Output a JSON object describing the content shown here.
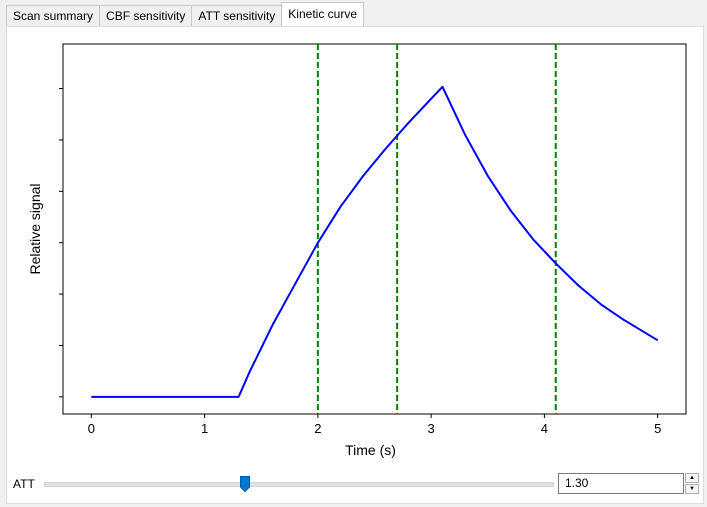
{
  "tabs": [
    {
      "label": "Scan summary",
      "active": false
    },
    {
      "label": "CBF sensitivity",
      "active": false
    },
    {
      "label": "ATT sensitivity",
      "active": false
    },
    {
      "label": "Kinetic curve",
      "active": true
    }
  ],
  "chart_data": {
    "type": "line",
    "title": "",
    "xlabel": "Time (s)",
    "ylabel": "Relative signal",
    "xlim": [
      -0.25,
      5.25
    ],
    "ylim": [
      -0.05,
      1.03
    ],
    "xticks": [
      0,
      1,
      2,
      3,
      4,
      5
    ],
    "ytick_count": 7,
    "ytick_labels_shown": false,
    "grid": false,
    "series": [
      {
        "color": "#0000ff",
        "x": [
          0,
          0.5,
          1.0,
          1.3,
          1.4,
          1.6,
          1.8,
          2.0,
          2.2,
          2.4,
          2.6,
          2.8,
          3.0,
          3.1,
          3.3,
          3.5,
          3.7,
          3.9,
          4.1,
          4.3,
          4.5,
          4.7,
          5.0
        ],
        "y": [
          0.0,
          0.0,
          0.0,
          0.0,
          0.075,
          0.21,
          0.33,
          0.45,
          0.555,
          0.645,
          0.725,
          0.8,
          0.87,
          0.905,
          0.765,
          0.645,
          0.545,
          0.46,
          0.39,
          0.325,
          0.27,
          0.225,
          0.165
        ]
      }
    ],
    "vlines": {
      "color": "#008000",
      "style": "dashed",
      "x": [
        2.0,
        2.7,
        4.1
      ]
    }
  },
  "controls": {
    "att_label": "ATT",
    "slider_value": 1.3,
    "slider_min": 0.0,
    "slider_max": 3.3,
    "spin_value": "1.30",
    "accent": "#0078d7"
  }
}
